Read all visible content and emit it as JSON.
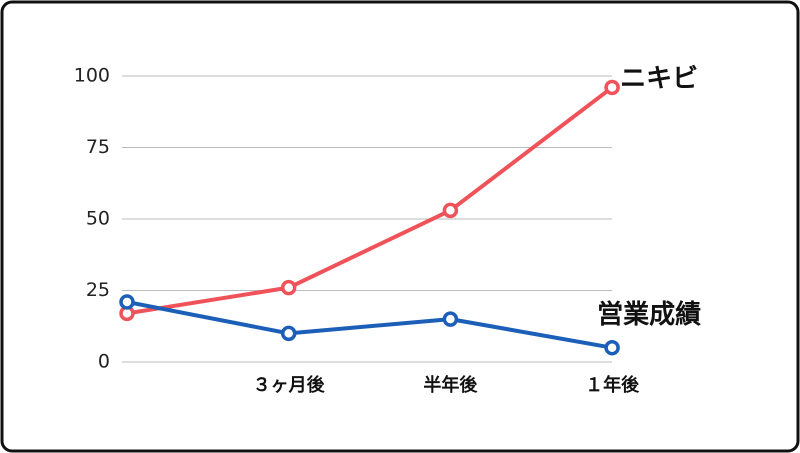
{
  "chart_data": {
    "type": "line",
    "categories": [
      null,
      "３ヶ月後",
      "半年後",
      "１年後"
    ],
    "series": [
      {
        "name": "ニキビ",
        "color": "#f0525a",
        "values": [
          17,
          26,
          53,
          96
        ]
      },
      {
        "name": "営業成績",
        "color": "#1c5fb8",
        "values": [
          21,
          10,
          15,
          5
        ]
      }
    ],
    "ylim": [
      0,
      100
    ],
    "yticks": [
      0,
      25,
      50,
      75,
      100
    ],
    "grid": true
  }
}
